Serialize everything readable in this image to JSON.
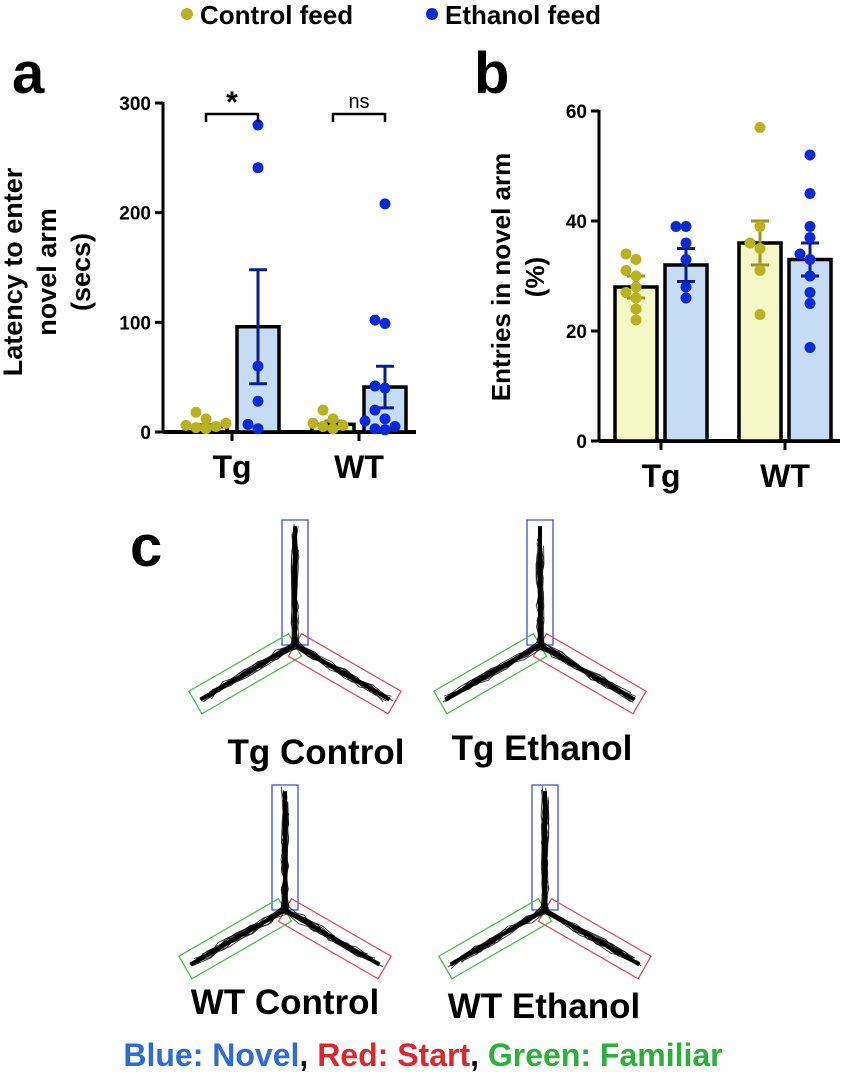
{
  "legend": {
    "control": {
      "label": "Control feed",
      "color": "#b8b21e"
    },
    "ethanol": {
      "label": "Ethanol feed",
      "color": "#0a2ad8"
    }
  },
  "colors": {
    "control_fill": "#f4f7c6",
    "ethanol_fill": "#c6dcf4",
    "novel": "#2e6bd9",
    "start": "#e0262d",
    "familiar": "#2bb03a",
    "arm_blue": "#3b4fd8",
    "arm_red": "#e0505a",
    "arm_green": "#4cc04a"
  },
  "panels": {
    "a": {
      "letter": "a",
      "ylabel_lines": [
        "Latency to enter",
        "novel arm",
        "(secs)"
      ]
    },
    "b": {
      "letter": "b",
      "ylabel_lines": [
        "Entries in novel arm",
        "(%)"
      ]
    },
    "c": {
      "letter": "c"
    }
  },
  "chart_data": [
    {
      "type": "bar",
      "panel": "a",
      "ylabel": "Latency to enter novel arm (secs)",
      "categories": [
        "Tg",
        "WT"
      ],
      "ylim": [
        0,
        300
      ],
      "yticks": [
        0,
        100,
        200,
        300
      ],
      "series": [
        {
          "name": "Control feed",
          "means": [
            5,
            7
          ],
          "sem": [
            2,
            3
          ],
          "points": [
            [
              3,
              5,
              8,
              12,
              18,
              4,
              6
            ],
            [
              3,
              5,
              8,
              12,
              20,
              6
            ]
          ]
        },
        {
          "name": "Ethanol feed",
          "means": [
            96,
            41
          ],
          "sem": [
            52,
            19
          ],
          "points": [
            [
              280,
              241,
              60,
              28,
              7,
              3
            ],
            [
              208,
              102,
              99,
              42,
              40,
              20,
              12,
              10,
              5,
              3,
              2
            ]
          ]
        }
      ],
      "significance": [
        {
          "category": "Tg",
          "text": "*"
        },
        {
          "category": "WT",
          "text": "ns"
        }
      ]
    },
    {
      "type": "bar",
      "panel": "b",
      "ylabel": "Entries in novel arm (%)",
      "categories": [
        "Tg",
        "WT"
      ],
      "ylim": [
        0,
        60
      ],
      "yticks": [
        0,
        20,
        40,
        60
      ],
      "series": [
        {
          "name": "Control feed",
          "means": [
            28,
            36
          ],
          "sem": [
            2,
            4
          ],
          "points": [
            [
              34,
              33,
              31,
              30,
              28,
              27,
              26,
              24,
              22
            ],
            [
              57,
              39,
              36,
              35,
              31,
              23
            ]
          ]
        },
        {
          "name": "Ethanol feed",
          "means": [
            32,
            33
          ],
          "sem": [
            3,
            3
          ],
          "points": [
            [
              39,
              39,
              36,
              33,
              28,
              26
            ],
            [
              52,
              45,
              39,
              37,
              34,
              33,
              30,
              27,
              25,
              17
            ]
          ]
        }
      ]
    }
  ],
  "tracks": [
    {
      "label": "Tg Control"
    },
    {
      "label": "Tg Ethanol"
    },
    {
      "label": "WT Control"
    },
    {
      "label": "WT Ethanol"
    }
  ],
  "key": {
    "novel": "Blue: Novel",
    "sep1": ", ",
    "start": "Red: Start",
    "sep2": ", ",
    "familiar": "Green: Familiar"
  }
}
